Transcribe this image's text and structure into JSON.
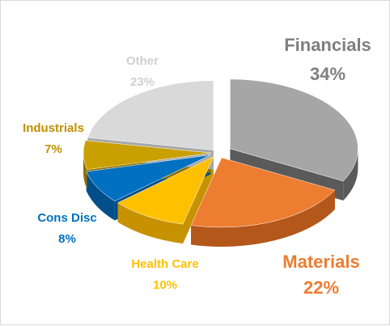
{
  "chart_data": {
    "type": "pie",
    "title": "",
    "style": "3d-exploded",
    "slices": [
      {
        "label": "Financials",
        "pct_label": "34%",
        "value": 34,
        "color": "#a6a6a6",
        "side_color": "#5a5a5a",
        "label_color": "#7f7f7f"
      },
      {
        "label": "Materials",
        "pct_label": "22%",
        "value": 22,
        "color": "#ed7d31",
        "side_color": "#b4571b",
        "label_color": "#ed7d31"
      },
      {
        "label": "Health Care",
        "pct_label": "10%",
        "value": 10,
        "color": "#ffc000",
        "side_color": "#c79200",
        "label_color": "#ffc000"
      },
      {
        "label": "Cons Disc",
        "pct_label": "8%",
        "value": 8,
        "color": "#0070c0",
        "side_color": "#004f8a",
        "label_color": "#0070c0"
      },
      {
        "label": "Industrials",
        "pct_label": "7%",
        "value": 7,
        "color": "#c9a000",
        "side_color": "#8f7100",
        "label_color": "#bf9000"
      },
      {
        "label": "Other",
        "pct_label": "23%",
        "value": 23,
        "color": "#d9d9d9",
        "side_color": "#a8a8a8",
        "label_color": "#d0d0d0"
      }
    ]
  }
}
